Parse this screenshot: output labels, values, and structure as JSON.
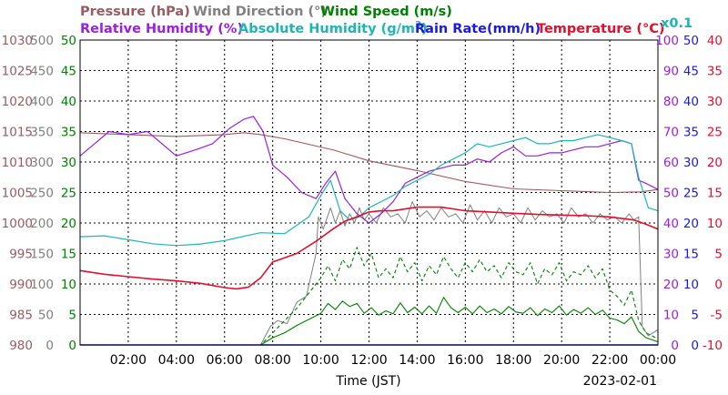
{
  "legend": {
    "pressure": "Pressure (hPa)",
    "wind_direction": "Wind Direction (°)",
    "wind_speed": "Wind Speed (m/s)",
    "relative_humidity": "Relative Humidity (%)",
    "absolute_humidity": "Absolute Humidity (g/m",
    "absolute_humidity_sup": "3",
    "absolute_humidity_close": ")",
    "rain_rate": "Rain Rate(mm/h)",
    "temperature": "Temperature (°C)",
    "multiplier": "x0.1"
  },
  "x_axis": {
    "label": "Time (JST)",
    "date": "2023-02-01"
  },
  "colors": {
    "pressure": "#9a5a62",
    "wind_direction": "#808080",
    "wind_speed": "#008000",
    "relative_humidity": "#9b1fe0",
    "absolute_humidity": "#1fb5b5",
    "rain_rate": "#1a1ae0",
    "temperature": "#e0102f"
  },
  "chart_data": {
    "type": "line",
    "xlim": [
      0,
      24
    ],
    "x_tick_labels": [
      "02:00",
      "04:00",
      "06:00",
      "08:00",
      "10:00",
      "12:00",
      "14:00",
      "16:00",
      "18:00",
      "20:00",
      "22:00",
      "00:00"
    ],
    "x_tick_hours": [
      2,
      4,
      6,
      8,
      10,
      12,
      14,
      16,
      18,
      20,
      22,
      24
    ],
    "axes": {
      "pressure": {
        "range": [
          980,
          1030
        ],
        "ticks": [
          "980",
          "985",
          "990",
          "995",
          "1000",
          "1005",
          "1010",
          "1015",
          "1020",
          "1025",
          "1030"
        ]
      },
      "wind_direction": {
        "range": [
          0,
          500
        ],
        "ticks": [
          "0",
          "50",
          "100",
          "150",
          "200",
          "250",
          "300",
          "350",
          "400",
          "450",
          "500"
        ]
      },
      "wind_speed": {
        "range": [
          0,
          50
        ],
        "ticks": [
          "0",
          "5",
          "10",
          "15",
          "20",
          "25",
          "30",
          "35",
          "40",
          "45",
          "50"
        ]
      },
      "relative_humidity": {
        "range": [
          0,
          100
        ],
        "ticks": [
          "0",
          "10",
          "20",
          "30",
          "40",
          "50",
          "60",
          "70",
          "80",
          "90",
          "100"
        ]
      },
      "rain_rate": {
        "range": [
          0,
          50
        ],
        "ticks": [
          "0",
          "5",
          "10",
          "15",
          "20",
          "25",
          "30",
          "35",
          "40",
          "45",
          "50"
        ]
      },
      "temperature": {
        "range": [
          -10,
          40
        ],
        "ticks": [
          "-10",
          "-5",
          "0",
          "5",
          "10",
          "15",
          "20",
          "25",
          "30",
          "35",
          "40"
        ]
      }
    },
    "series": [
      {
        "name": "Pressure (hPa)",
        "axis": "pressure",
        "x": [
          0,
          2,
          4,
          6,
          6.8,
          7.5,
          8.5,
          9.5,
          10.5,
          12,
          14,
          16,
          18,
          20,
          22,
          23.3,
          24
        ],
        "y": [
          1014.8,
          1014.5,
          1014.2,
          1014.5,
          1014.8,
          1014.5,
          1013.8,
          1012.9,
          1012,
          1010.2,
          1008.6,
          1006.8,
          1005.6,
          1005.3,
          1005,
          1005.1,
          1005.5
        ]
      },
      {
        "name": "Wind Direction (°)",
        "axis": "wind_direction",
        "x": [
          0,
          7.5,
          7.9,
          8.2,
          8.6,
          9.0,
          9.4,
          9.8,
          9.9,
          10.1,
          10.4,
          10.6,
          10.8,
          11.0,
          11.2,
          11.4,
          11.6,
          11.8,
          12.0,
          12.3,
          12.6,
          12.9,
          13.2,
          13.5,
          13.8,
          14.1,
          14.4,
          14.7,
          15.0,
          15.3,
          15.6,
          15.9,
          16.2,
          16.5,
          16.8,
          17.1,
          17.4,
          17.7,
          18.0,
          18.3,
          18.6,
          18.9,
          19.2,
          19.5,
          19.8,
          20.1,
          20.4,
          20.7,
          21.0,
          21.3,
          21.6,
          21.9,
          22.2,
          22.5,
          22.8,
          23.0,
          23.2,
          23.35,
          23.6,
          24
        ],
        "y": [
          0,
          0,
          30,
          40,
          35,
          70,
          80,
          150,
          210,
          190,
          225,
          200,
          220,
          195,
          215,
          200,
          225,
          205,
          215,
          200,
          225,
          210,
          215,
          200,
          235,
          210,
          220,
          205,
          225,
          210,
          215,
          200,
          230,
          205,
          220,
          200,
          225,
          210,
          215,
          200,
          225,
          205,
          220,
          210,
          215,
          200,
          225,
          210,
          215,
          200,
          215,
          205,
          210,
          200,
          215,
          205,
          210,
          30,
          15,
          25
        ]
      },
      {
        "name": "Wind Speed avg",
        "axis": "wind_speed",
        "x": [
          0,
          7.5,
          8.0,
          8.5,
          9.0,
          9.5,
          10.0,
          10.3,
          10.6,
          10.9,
          11.2,
          11.5,
          11.8,
          12.1,
          12.4,
          12.7,
          13.0,
          13.3,
          13.6,
          13.9,
          14.2,
          14.5,
          14.8,
          15.1,
          15.4,
          15.7,
          16.0,
          16.3,
          16.6,
          16.9,
          17.2,
          17.5,
          17.8,
          18.1,
          18.4,
          18.7,
          19.0,
          19.3,
          19.6,
          19.9,
          20.2,
          20.5,
          20.8,
          21.1,
          21.4,
          21.7,
          22.0,
          22.3,
          22.6,
          22.9,
          23.2,
          23.5,
          24
        ],
        "y": [
          0,
          0,
          1.2,
          2,
          3.2,
          4.2,
          5.2,
          6.8,
          5.8,
          7.2,
          6.3,
          6.8,
          5.2,
          6.1,
          4.9,
          5.6,
          5.1,
          6.9,
          5.3,
          6.2,
          5.1,
          6.4,
          5.2,
          7.8,
          6.1,
          5.3,
          6.2,
          5.1,
          6.4,
          5.3,
          5.9,
          5.1,
          6.3,
          5.4,
          5.2,
          6.1,
          4.8,
          5.9,
          5.3,
          6.4,
          4.9,
          5.8,
          5.2,
          6.1,
          5.0,
          5.7,
          4.4,
          4.1,
          3.5,
          4.6,
          2.2,
          1.2,
          0.5
        ]
      },
      {
        "name": "Wind Speed max",
        "axis": "wind_speed",
        "x": [
          0,
          7.5,
          8.0,
          8.5,
          9.0,
          9.5,
          10.0,
          10.3,
          10.6,
          10.9,
          11.2,
          11.5,
          11.8,
          12.1,
          12.4,
          12.7,
          13.0,
          13.3,
          13.6,
          13.9,
          14.2,
          14.5,
          14.8,
          15.1,
          15.4,
          15.7,
          16.0,
          16.3,
          16.6,
          16.9,
          17.2,
          17.5,
          17.8,
          18.1,
          18.4,
          18.7,
          19.0,
          19.3,
          19.6,
          19.9,
          20.2,
          20.5,
          20.8,
          21.1,
          21.4,
          21.7,
          22.0,
          22.3,
          22.6,
          22.9,
          23.2,
          23.5,
          24
        ],
        "y": [
          0,
          0,
          2,
          4,
          6,
          8.5,
          11,
          13,
          10.5,
          14,
          12.5,
          16,
          13,
          15,
          11,
          12.5,
          11,
          14.5,
          12,
          13.5,
          10.5,
          13,
          11.5,
          14.5,
          12.5,
          11,
          13.5,
          12,
          14,
          12,
          13,
          11,
          13.5,
          12,
          11.5,
          13.5,
          10,
          12.5,
          11.5,
          13.5,
          10.5,
          12,
          11.5,
          13,
          11,
          12.5,
          9,
          8,
          6.5,
          9,
          4,
          2,
          1
        ]
      },
      {
        "name": "Relative Humidity (%)",
        "axis": "relative_humidity",
        "x": [
          0,
          0.6,
          1.2,
          2.0,
          2.8,
          3.4,
          4.0,
          4.8,
          5.5,
          6.2,
          6.8,
          7.2,
          7.6,
          8.0,
          8.6,
          9.2,
          9.8,
          10.2,
          10.6,
          11.0,
          11.5,
          12.0,
          12.5,
          13.0,
          13.5,
          14.0,
          14.5,
          15.0,
          15.5,
          16.0,
          16.5,
          17.0,
          17.5,
          18.0,
          18.5,
          19.0,
          19.5,
          20.0,
          20.5,
          21.0,
          21.5,
          22.0,
          22.5,
          22.9,
          23.2,
          23.5,
          24
        ],
        "y": [
          62,
          66,
          70,
          69,
          70,
          66,
          62,
          64,
          66,
          71,
          74,
          75,
          70,
          59,
          55,
          50,
          48,
          53,
          57,
          48,
          43,
          40,
          43,
          47,
          53,
          55,
          57,
          58,
          59,
          59,
          61,
          60,
          63,
          65,
          62,
          62,
          63,
          63,
          64,
          65,
          65,
          66,
          67,
          66,
          54,
          53,
          51
        ]
      },
      {
        "name": "Absolute Humidity (g/m3) x0.1",
        "axis": "relative_humidity",
        "x": [
          0,
          1,
          2,
          3,
          4,
          5,
          6,
          7,
          7.5,
          8.5,
          9.5,
          10.0,
          10.4,
          10.8,
          11.2,
          11.6,
          12.0,
          12.5,
          13.0,
          13.5,
          14.0,
          14.5,
          15.0,
          15.5,
          16.0,
          16.5,
          17.0,
          17.5,
          18.0,
          18.5,
          19.0,
          19.5,
          20.0,
          20.5,
          21.0,
          21.5,
          22.0,
          22.5,
          22.9,
          23.2,
          23.6,
          24
        ],
        "y": [
          35.5,
          35.8,
          34.5,
          33.2,
          32.6,
          33.1,
          34.2,
          36,
          36.8,
          36.5,
          42,
          49,
          54,
          44,
          41,
          42,
          45,
          47,
          49,
          52,
          54,
          56,
          59,
          61,
          63,
          66,
          65,
          66,
          67,
          68,
          66,
          66,
          67,
          67,
          68,
          69,
          68,
          67,
          66,
          55,
          45,
          44
        ]
      },
      {
        "name": "Rain Rate(mm/h)",
        "axis": "rain_rate",
        "x": [
          0,
          24
        ],
        "y": [
          0,
          0
        ]
      },
      {
        "name": "Temperature (°C)",
        "axis": "temperature",
        "x": [
          0,
          0.5,
          1,
          2,
          3,
          4,
          5,
          6,
          6.5,
          7,
          7.5,
          8,
          9,
          9.8,
          10.5,
          11,
          11.5,
          12,
          12.5,
          13,
          14,
          15,
          16,
          17,
          18,
          19,
          20,
          21,
          22,
          23,
          23.5,
          24
        ],
        "y": [
          2.2,
          1.9,
          1.6,
          1.2,
          0.8,
          0.5,
          0.1,
          -0.6,
          -0.8,
          -0.5,
          1,
          3.6,
          5,
          7,
          9,
          10.3,
          11,
          11.8,
          12,
          12,
          12.6,
          12.6,
          12,
          11.8,
          11.6,
          11.4,
          11.3,
          11.2,
          11,
          10.5,
          9.8,
          9
        ]
      }
    ]
  }
}
